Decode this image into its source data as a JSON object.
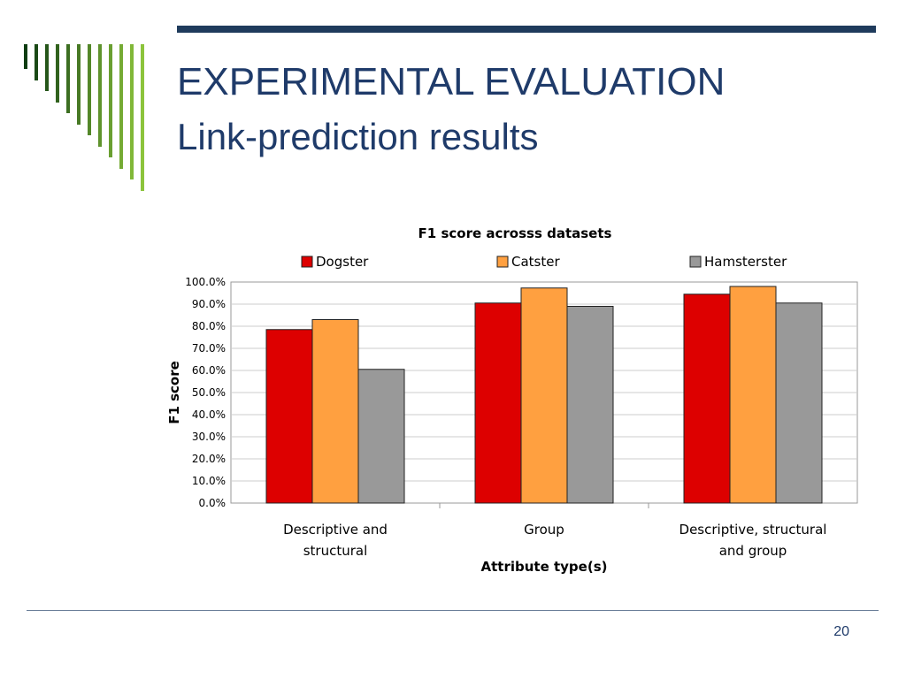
{
  "slide": {
    "title": "EXPERIMENTAL EVALUATION",
    "subtitle": "Link-prediction results",
    "page_number": "20",
    "colors": {
      "title": "#1f3b6a",
      "rule": "#1f3b5c",
      "stripe_dark": "#0f3d12",
      "stripe_light": "#8cc43c"
    }
  },
  "chart_data": {
    "type": "bar",
    "title": "F1 score acrosss datasets",
    "xlabel": "Attribute type(s)",
    "ylabel": "F1 score",
    "ylim": [
      0,
      100
    ],
    "yticks": [
      "0.0%",
      "10.0%",
      "20.0%",
      "30.0%",
      "40.0%",
      "50.0%",
      "60.0%",
      "70.0%",
      "80.0%",
      "90.0%",
      "100.0%"
    ],
    "categories": [
      [
        "Descriptive and",
        "structural"
      ],
      [
        "Group"
      ],
      [
        "Descriptive, structural",
        "and group"
      ]
    ],
    "series": [
      {
        "name": "Dogster",
        "color": "#dd0000",
        "values": [
          78.5,
          90.5,
          94.5
        ]
      },
      {
        "name": "Catster",
        "color": "#ffa040",
        "values": [
          83.0,
          97.3,
          98.0
        ]
      },
      {
        "name": "Hamsterster",
        "color": "#999999",
        "values": [
          60.5,
          89.0,
          90.5
        ]
      }
    ],
    "legend": "top",
    "grid": true
  }
}
